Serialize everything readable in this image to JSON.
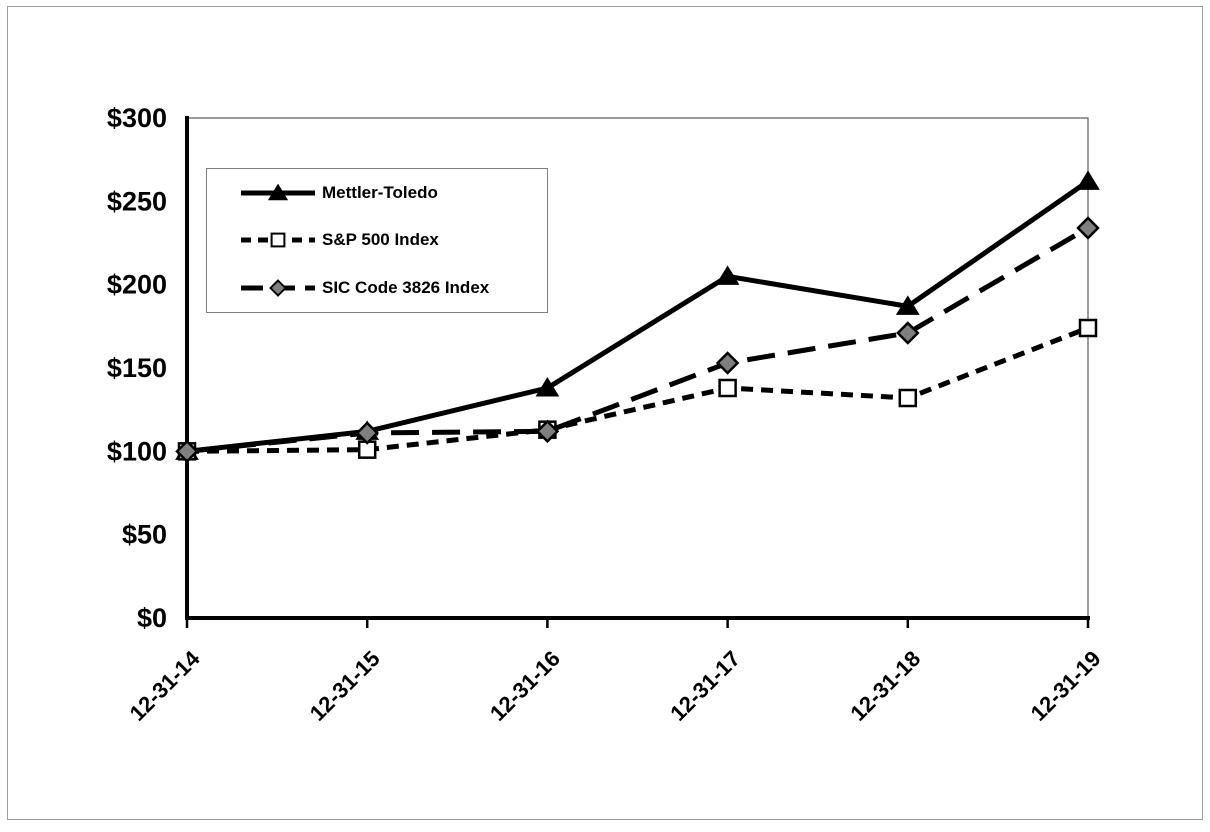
{
  "frame": {
    "background": "#ffffff",
    "border_color": "#9d9d9d"
  },
  "chart_data": {
    "type": "line",
    "title": "",
    "xlabel": "",
    "ylabel": "",
    "categories": [
      "12-31-14",
      "12-31-15",
      "12-31-16",
      "12-31-17",
      "12-31-18",
      "12-31-19"
    ],
    "series": [
      {
        "name": "Mettler-Toledo",
        "values": [
          100,
          112,
          138,
          205,
          187,
          262
        ],
        "line_style": "solid",
        "line_color": "#000000",
        "marker": "triangle",
        "marker_fill": "#000000",
        "marker_stroke": "#000000"
      },
      {
        "name": "S&P 500 Index",
        "values": [
          100,
          101,
          113,
          138,
          132,
          174
        ],
        "line_style": "short-dash",
        "line_color": "#000000",
        "marker": "square",
        "marker_fill": "#ffffff",
        "marker_stroke": "#000000"
      },
      {
        "name": "SIC Code 3826 Index",
        "values": [
          100,
          111,
          112,
          153,
          171,
          234
        ],
        "line_style": "long-dash",
        "line_color": "#000000",
        "marker": "diamond",
        "marker_fill": "#7f7f7f",
        "marker_stroke": "#000000"
      }
    ],
    "ylim": [
      0,
      300
    ],
    "ytick_step": 50,
    "ytick_labels": [
      "$0",
      "$50",
      "$100",
      "$150",
      "$200",
      "$250",
      "$300"
    ],
    "grid": false,
    "legend_position": "upper-left-inside",
    "axis_color": "#000000",
    "plot_border_color": "#595959"
  }
}
